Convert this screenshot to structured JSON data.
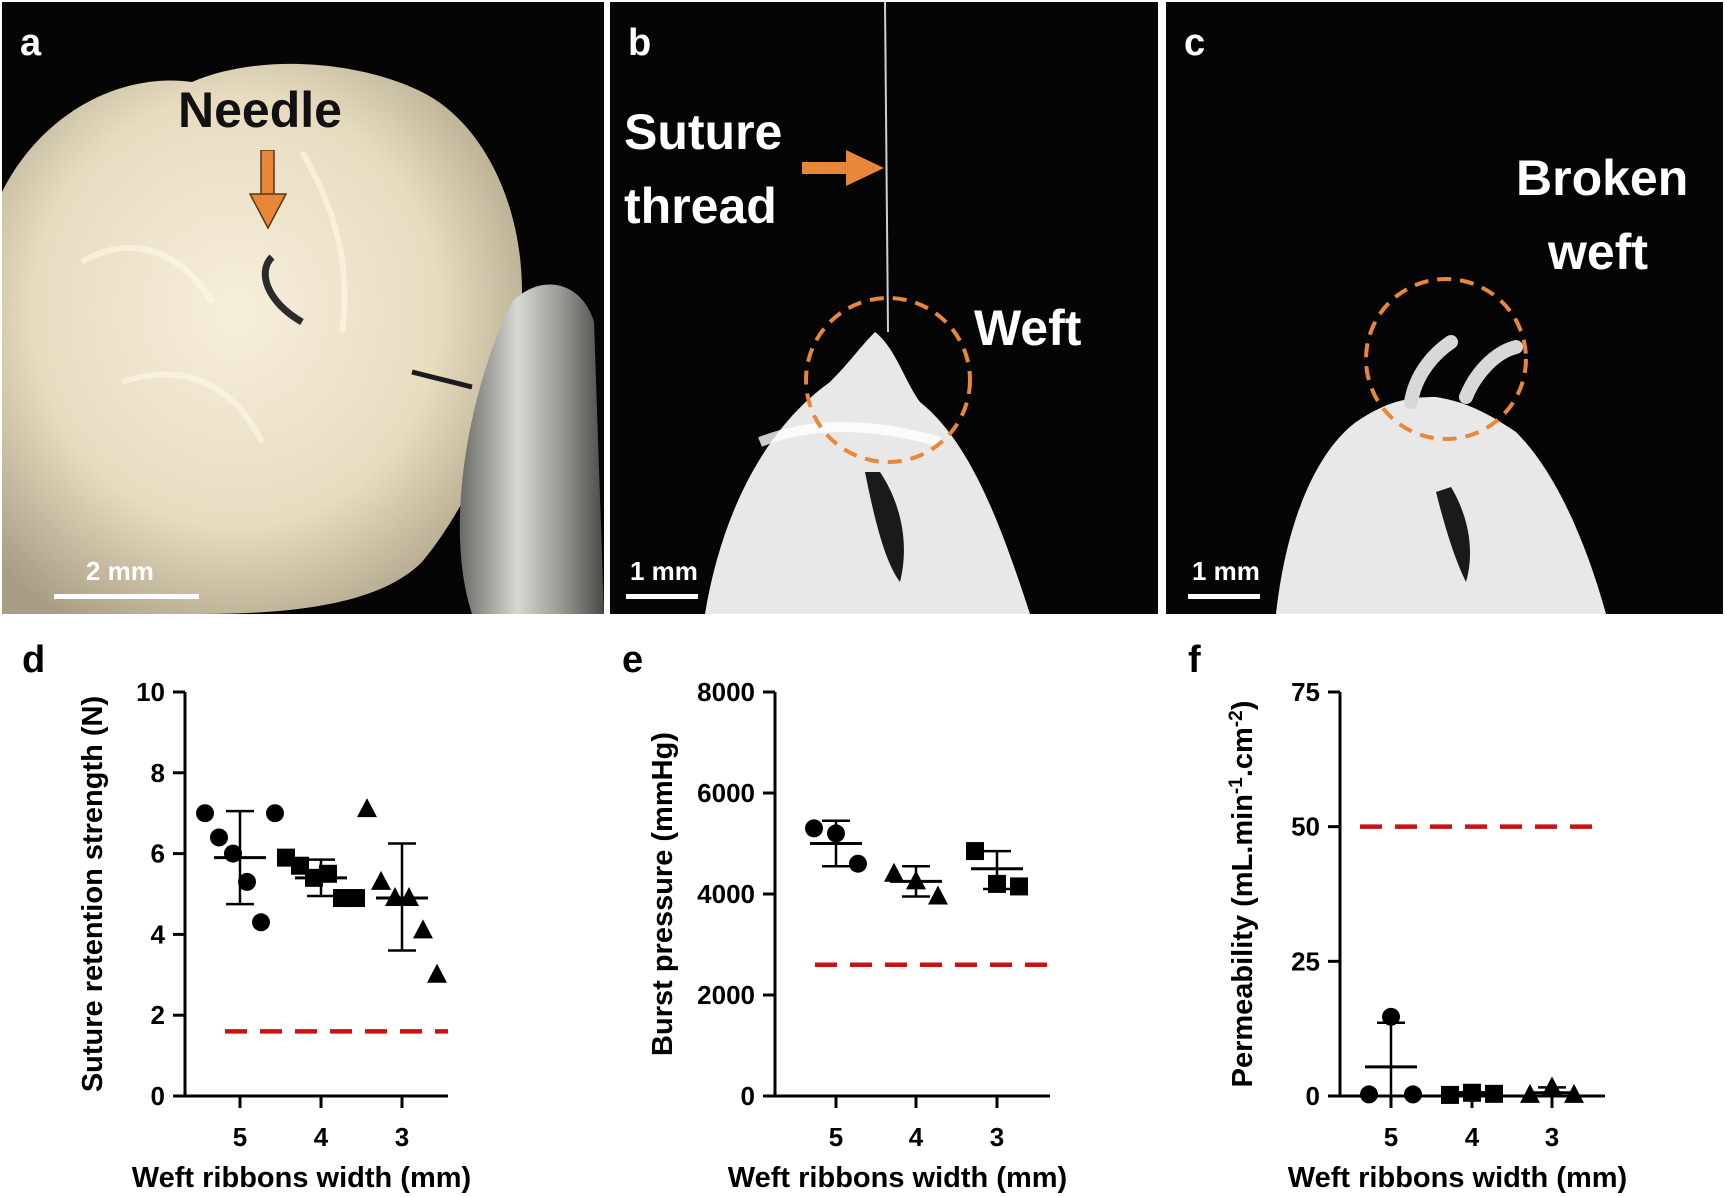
{
  "panels": {
    "a": {
      "letter": "a",
      "annotation": "Needle",
      "scale": "2 mm"
    },
    "b": {
      "letter": "b",
      "annotation_1": "Suture",
      "annotation_2": "thread",
      "annotation_3": "Weft",
      "scale": "1 mm"
    },
    "c": {
      "letter": "c",
      "annotation_1": "Broken",
      "annotation_2": "weft",
      "scale": "1 mm"
    }
  },
  "colors": {
    "photo_bg": "#050505",
    "tissue": "#efe6cf",
    "arrow": "#e8863a",
    "dashed_circle": "#e8863a",
    "threshold": "#cc1111",
    "marks": "#000000"
  },
  "chart_data": [
    {
      "letter": "d",
      "type": "scatter",
      "xlabel": "Weft ribbons width (mm)",
      "ylabel": "Suture retention strength (N)",
      "ylim": [
        0,
        10
      ],
      "yticks": [
        "0",
        "2",
        "4",
        "6",
        "8",
        "10"
      ],
      "categories": [
        "5",
        "4",
        "3"
      ],
      "threshold": 1.6,
      "series": [
        {
          "category": "5",
          "marker": "circle",
          "points": [
            7.0,
            6.4,
            6.0,
            5.3,
            4.3,
            7.0
          ],
          "mean": 5.9,
          "sd_low": 4.75,
          "sd_high": 7.05
        },
        {
          "category": "4",
          "marker": "square",
          "points": [
            5.9,
            5.7,
            5.4,
            5.5,
            4.9,
            4.9
          ],
          "mean": 5.4,
          "sd_low": 4.95,
          "sd_high": 5.85
        },
        {
          "category": "3",
          "marker": "triangle",
          "points": [
            7.1,
            5.3,
            4.9,
            4.9,
            4.1,
            3.0
          ],
          "mean": 4.9,
          "sd_low": 3.6,
          "sd_high": 6.25
        }
      ]
    },
    {
      "letter": "e",
      "type": "scatter",
      "xlabel": "Weft ribbons width (mm)",
      "ylabel": "Burst pressure (mmHg)",
      "ylim": [
        0,
        8000
      ],
      "yticks": [
        "0",
        "2000",
        "4000",
        "6000",
        "8000"
      ],
      "categories": [
        "5",
        "4",
        "3"
      ],
      "threshold": 2600,
      "series": [
        {
          "category": "5",
          "marker": "circle",
          "points": [
            5300,
            5200,
            4600
          ],
          "mean": 5000,
          "sd_low": 4550,
          "sd_high": 5450
        },
        {
          "category": "4",
          "marker": "triangle",
          "points": [
            4400,
            4250,
            3950
          ],
          "mean": 4250,
          "sd_low": 3950,
          "sd_high": 4550
        },
        {
          "category": "3",
          "marker": "square",
          "points": [
            4850,
            4200,
            4150
          ],
          "mean": 4500,
          "sd_low": 4100,
          "sd_high": 4850
        }
      ]
    },
    {
      "letter": "f",
      "type": "scatter",
      "xlabel": "Weft ribbons width (mm)",
      "ylabel": "Permeability (mL.min",
      "ylabel_sup1": "-1",
      "ylabel_mid": ".cm",
      "ylabel_sup2": "-2",
      "ylabel_end": ")",
      "ylim": [
        0,
        75
      ],
      "yticks": [
        "0",
        "25",
        "50",
        "75"
      ],
      "categories": [
        "5",
        "4",
        "3"
      ],
      "threshold": 50,
      "series": [
        {
          "category": "5",
          "marker": "circle",
          "points": [
            0.3,
            14.7,
            0.3
          ],
          "mean": 5.4,
          "sd_low": 0,
          "sd_high": 13.6
        },
        {
          "category": "4",
          "marker": "square",
          "points": [
            0.2,
            0.6,
            0.4
          ],
          "mean": 0.4,
          "sd_low": 0.1,
          "sd_high": 0.7
        },
        {
          "category": "3",
          "marker": "triangle",
          "points": [
            0.2,
            1.6,
            0.2
          ],
          "mean": 0.6,
          "sd_low": 0,
          "sd_high": 1.6
        }
      ]
    }
  ]
}
